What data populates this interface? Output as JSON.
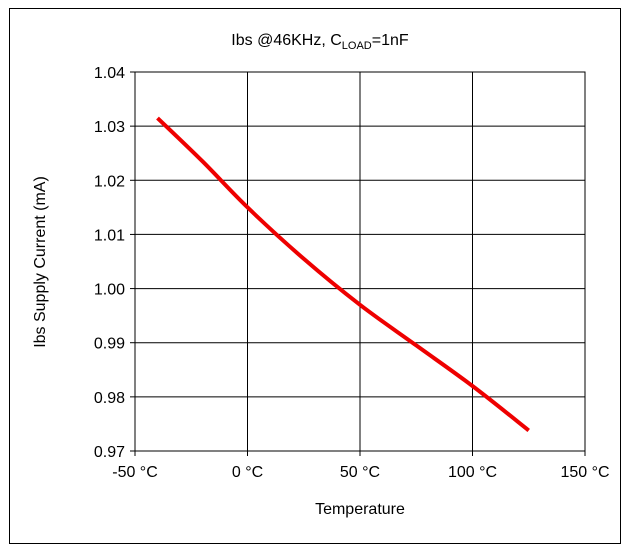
{
  "chart_data": {
    "type": "line",
    "title": {
      "prefix": "Ibs @46KHz, C",
      "subscript": "LOAD",
      "suffix": "=1nF"
    },
    "xlabel": "Temperature",
    "ylabel": "Ibs Supply Current (mA)",
    "xlim": [
      -50,
      150
    ],
    "ylim": [
      0.97,
      1.04
    ],
    "x_ticks": [
      -50,
      0,
      50,
      100,
      150
    ],
    "x_tick_labels": [
      "-50 °C",
      "0 °C",
      "50 °C",
      "100 °C",
      "150 °C"
    ],
    "y_ticks": [
      0.97,
      0.98,
      0.99,
      1.0,
      1.01,
      1.02,
      1.03,
      1.04
    ],
    "y_tick_labels": [
      "0.97",
      "0.98",
      "0.99",
      "1.00",
      "1.01",
      "1.02",
      "1.03",
      "1.04"
    ],
    "grid": true,
    "series": [
      {
        "color": "#ee0000",
        "x": [
          -40,
          -20,
          0,
          25,
          50,
          75,
          100,
          125
        ],
        "y": [
          1.0315,
          1.0235,
          1.015,
          1.0055,
          0.997,
          0.9895,
          0.982,
          0.9738
        ]
      }
    ]
  }
}
